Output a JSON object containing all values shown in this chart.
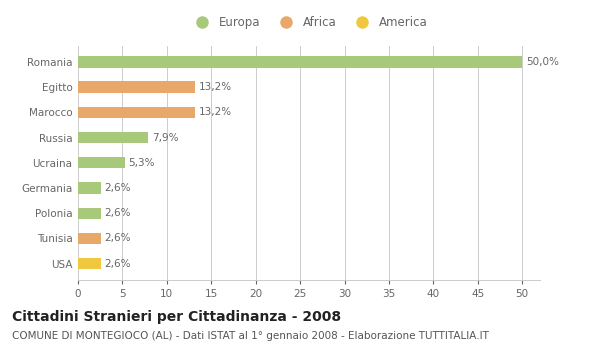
{
  "categories": [
    "Romania",
    "Egitto",
    "Marocco",
    "Russia",
    "Ucraina",
    "Germania",
    "Polonia",
    "Tunisia",
    "USA"
  ],
  "values": [
    50.0,
    13.2,
    13.2,
    7.9,
    5.3,
    2.6,
    2.6,
    2.6,
    2.6
  ],
  "labels": [
    "50,0%",
    "13,2%",
    "13,2%",
    "7,9%",
    "5,3%",
    "2,6%",
    "2,6%",
    "2,6%",
    "2,6%"
  ],
  "colors": [
    "#a8c87a",
    "#e8a86a",
    "#e8a86a",
    "#a8c87a",
    "#a8c87a",
    "#a8c87a",
    "#a8c87a",
    "#e8a86a",
    "#f0c840"
  ],
  "legend_labels": [
    "Europa",
    "Africa",
    "America"
  ],
  "legend_colors": [
    "#a8c87a",
    "#e8a86a",
    "#f0c840"
  ],
  "title": "Cittadini Stranieri per Cittadinanza - 2008",
  "subtitle": "COMUNE DI MONTEGIOCO (AL) - Dati ISTAT al 1° gennaio 2008 - Elaborazione TUTTITALIA.IT",
  "xlim": [
    0,
    52
  ],
  "xticks": [
    0,
    5,
    10,
    15,
    20,
    25,
    30,
    35,
    40,
    45,
    50
  ],
  "background_color": "#ffffff",
  "grid_color": "#cccccc",
  "bar_height": 0.45,
  "title_fontsize": 10,
  "subtitle_fontsize": 7.5,
  "tick_fontsize": 7.5,
  "label_fontsize": 7.5,
  "legend_fontsize": 8.5
}
